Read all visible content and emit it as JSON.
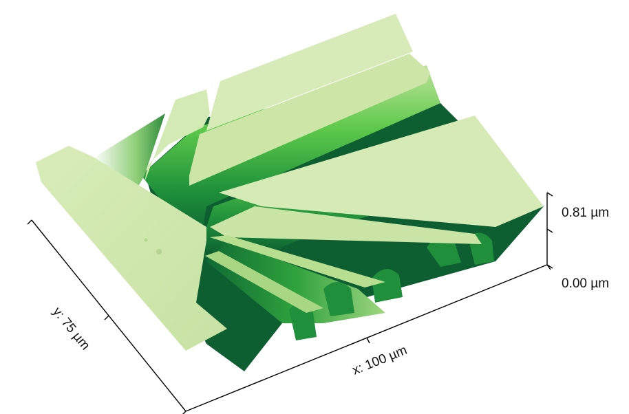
{
  "axes": {
    "x_label": "x: 100 µm",
    "y_label": "y: 75 µm",
    "z_max_label": "0.81 µm",
    "z_min_label": "0.00 µm"
  },
  "colors": {
    "surface_top": "#cfe7ac",
    "surface_top_light": "#e2f0c8",
    "wall_mid": "#3fba3a",
    "wall_dark": "#127a36",
    "wall_deep": "#0b5a30",
    "background": "#ffffff"
  }
}
